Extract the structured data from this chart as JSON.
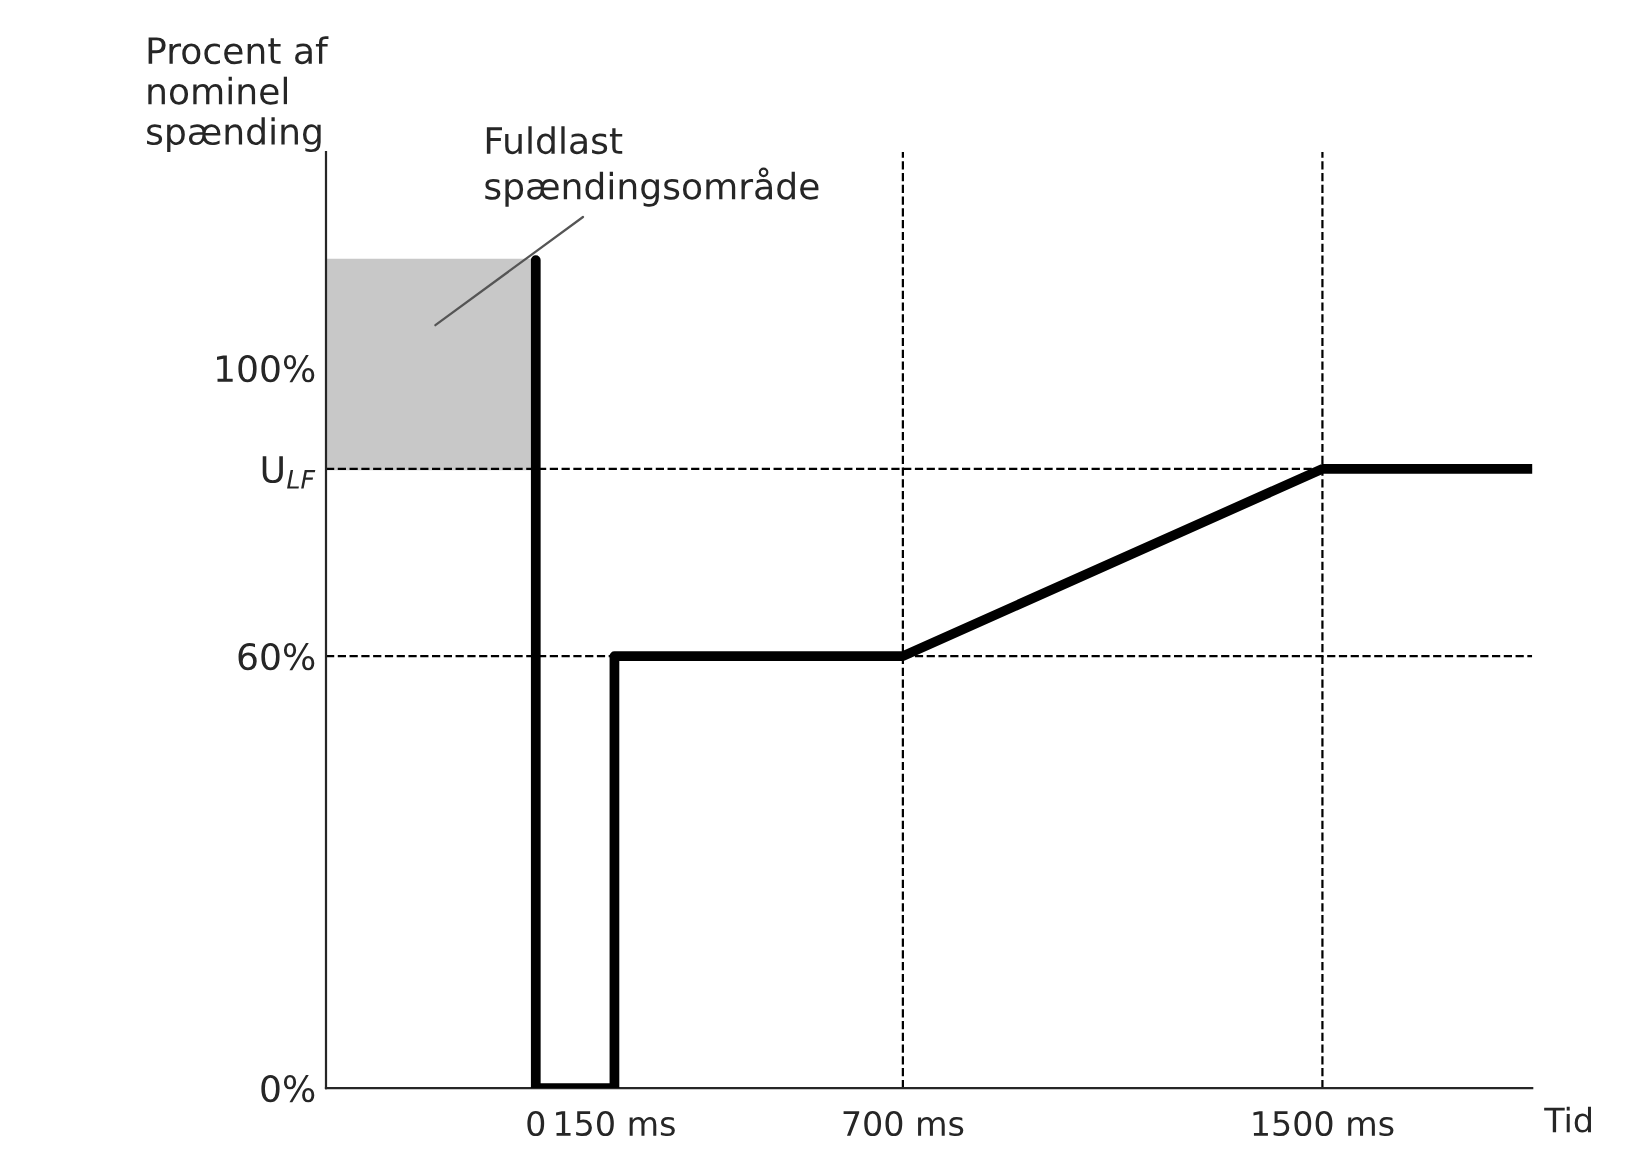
{
  "chart_data": {
    "type": "line",
    "xlabel": "Tid",
    "ylabel": "Procent af\nnominel\nspænding",
    "series": [
      {
        "color": "#000000",
        "x": [
          0,
          0,
          150,
          150,
          700,
          1500,
          1900
        ],
        "values": [
          115,
          0,
          0,
          60,
          60,
          86,
          86
        ]
      }
    ],
    "xlim": [
      -400,
      1900
    ],
    "ylim": [
      0,
      130
    ],
    "xticks": [
      0,
      {
        "value": 150,
        "label": "150 ms"
      },
      {
        "value": 700,
        "label": "700 ms"
      },
      {
        "value": 1500,
        "label": "1500 ms"
      }
    ],
    "yticks": [
      {
        "value": 0,
        "label": "0%"
      },
      {
        "value": 60,
        "label": "60%"
      },
      {
        "value": 86,
        "label": "U$_{LF}$"
      },
      {
        "value": 100,
        "label": "100%"
      }
    ],
    "ref_lines": [
      {
        "axis": "y",
        "value": 60,
        "line_style": "dashed",
        "color": "#000000"
      },
      {
        "axis": "y",
        "value": 86,
        "line_style": "dashed",
        "color": "#000000"
      },
      {
        "axis": "x",
        "value": 700,
        "line_style": "dashed",
        "color": "#000000"
      },
      {
        "axis": "x",
        "value": 1500,
        "line_style": "dashed",
        "color": "#000000"
      }
    ],
    "bands": [
      {
        "axis": "y",
        "from": 86,
        "to": 115,
        "label": "Fuldlast\nspændingsområde",
        "color": "#c8c8c8"
      }
    ],
    "grid": false,
    "line_style": "solid",
    "marker": "none"
  }
}
